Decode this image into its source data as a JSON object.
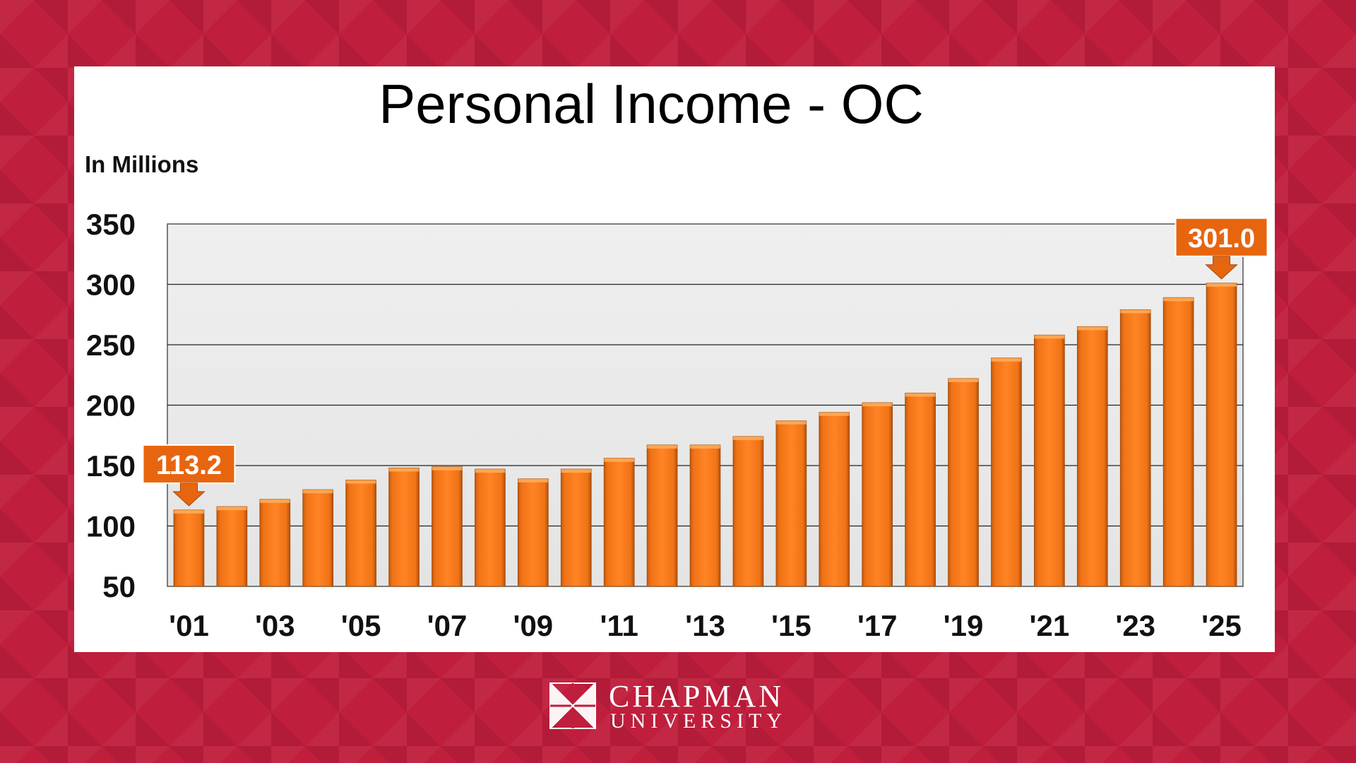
{
  "chart_data": {
    "type": "bar",
    "title": "Personal Income - OC",
    "unit_label": "In Millions",
    "ylim": [
      50,
      350
    ],
    "yticks": [
      50,
      100,
      150,
      200,
      250,
      300,
      350
    ],
    "grid": true,
    "x": [
      "'01",
      "'02",
      "'03",
      "'04",
      "'05",
      "'06",
      "'07",
      "'08",
      "'09",
      "'10",
      "'11",
      "'12",
      "'13",
      "'14",
      "'15",
      "'16",
      "'17",
      "'18",
      "'19",
      "'20",
      "'21",
      "'22",
      "'23",
      "'24",
      "'25"
    ],
    "xtick_labels": [
      "'01",
      "'03",
      "'05",
      "'07",
      "'09",
      "'11",
      "'13",
      "'15",
      "'17",
      "'19",
      "'21",
      "'23",
      "'25"
    ],
    "values": [
      113.2,
      116,
      122,
      130,
      138,
      148,
      149,
      147,
      139,
      147,
      156,
      167,
      167,
      174,
      187,
      194,
      202,
      210,
      222,
      239,
      258,
      265,
      279,
      289,
      301.0
    ],
    "bar_color": "#f07316",
    "callouts": [
      {
        "index": 0,
        "label": "113.2"
      },
      {
        "index": 24,
        "label": "301.0"
      }
    ]
  },
  "logo": {
    "line1": "CHAPMAN",
    "line2": "UNIVERSITY"
  },
  "colors": {
    "background": "#bf1e3c",
    "bar": "#f07316",
    "plot_bg": "#ececec"
  }
}
